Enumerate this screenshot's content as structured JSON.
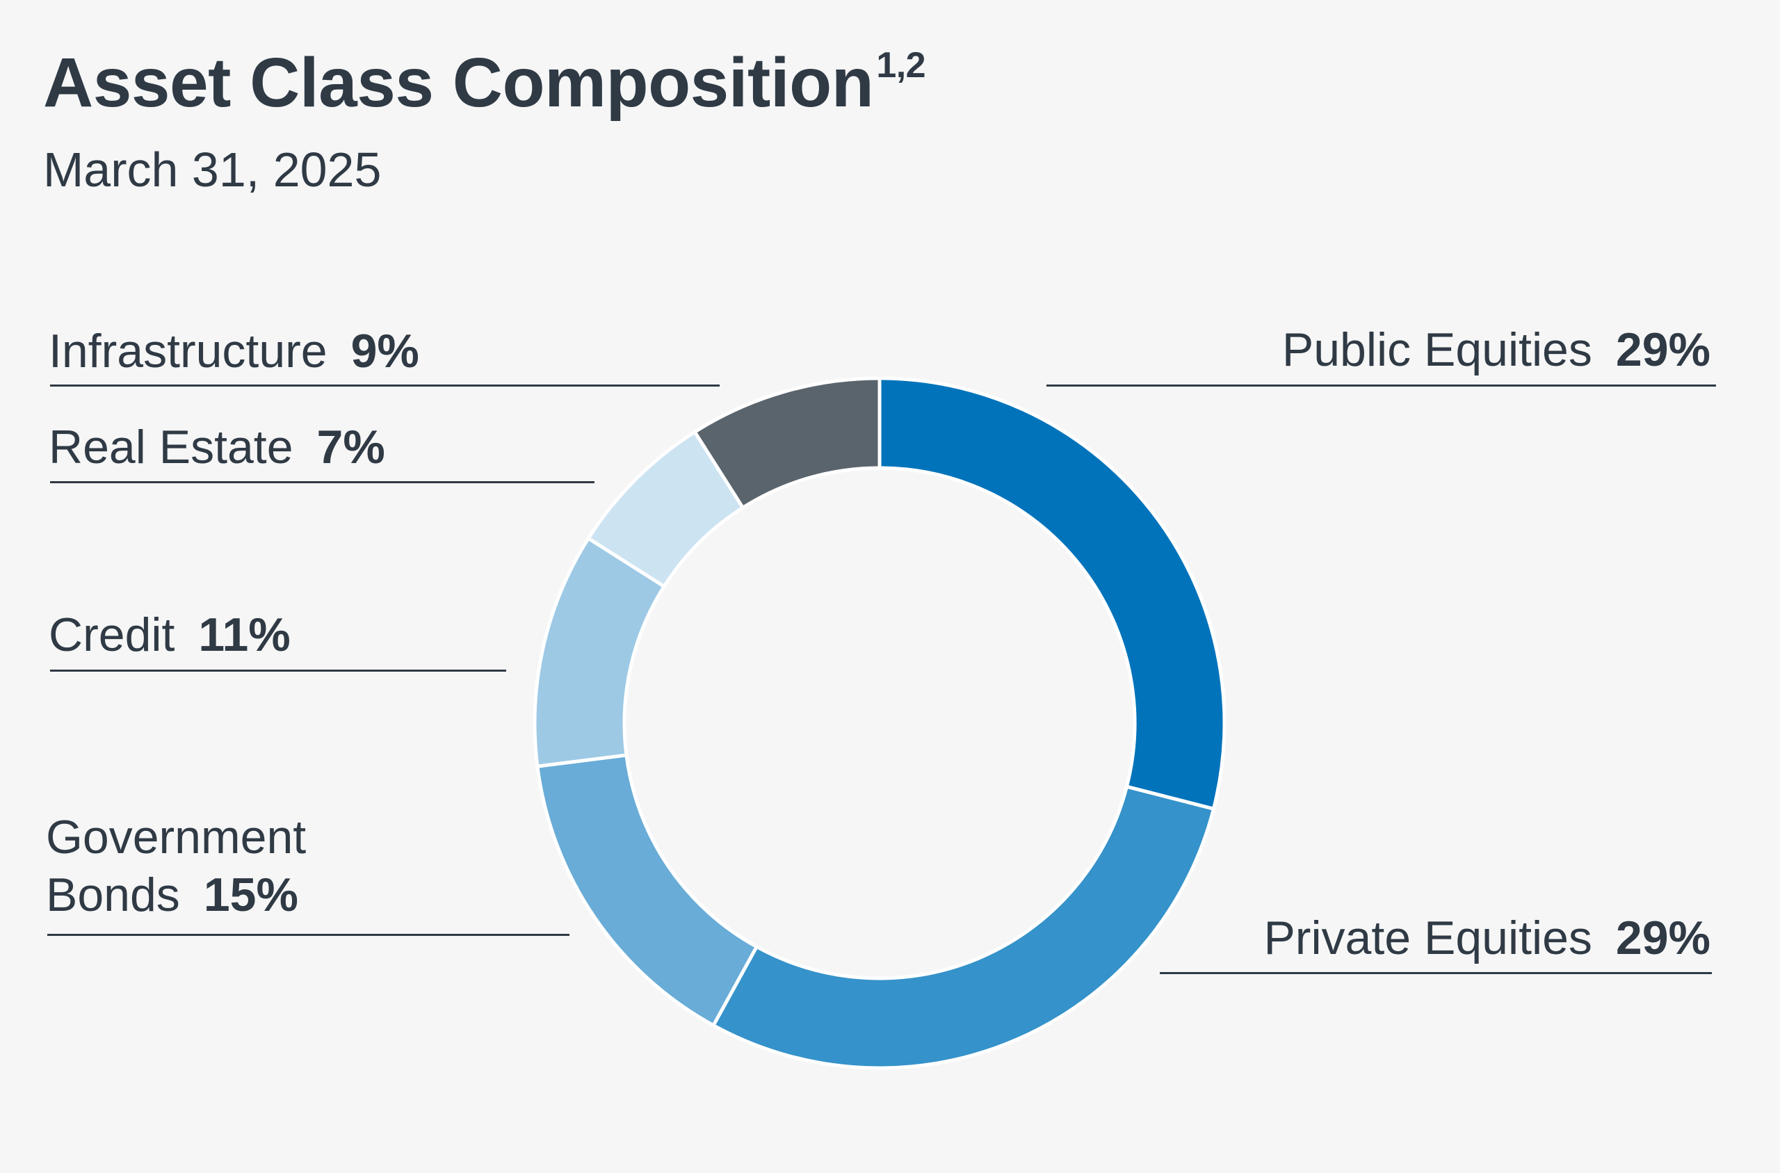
{
  "header": {
    "title": "Asset Class Composition",
    "title_superscript": "1,2",
    "subtitle": "March 31, 2025"
  },
  "chart_data": {
    "type": "pie",
    "variant": "donut",
    "title": "Asset Class Composition",
    "subtitle": "March 31, 2025",
    "start_angle": "12 o'clock",
    "direction": "clockwise",
    "slices": [
      {
        "name": "Public Equities",
        "value": 29,
        "label": "29%",
        "color": "#0073bb"
      },
      {
        "name": "Private Equities",
        "value": 29,
        "label": "29%",
        "color": "#3592ca"
      },
      {
        "name": "Government Bonds",
        "name_line1": "Government",
        "name_line2": "Bonds",
        "value": 15,
        "label": "15%",
        "color": "#68acd7"
      },
      {
        "name": "Credit",
        "value": 11,
        "label": "11%",
        "color": "#9dc9e5"
      },
      {
        "name": "Real Estate",
        "value": 7,
        "label": "7%",
        "color": "#cce3f2"
      },
      {
        "name": "Infrastructure",
        "value": 9,
        "label": "9%",
        "color": "#5a646d"
      }
    ]
  }
}
